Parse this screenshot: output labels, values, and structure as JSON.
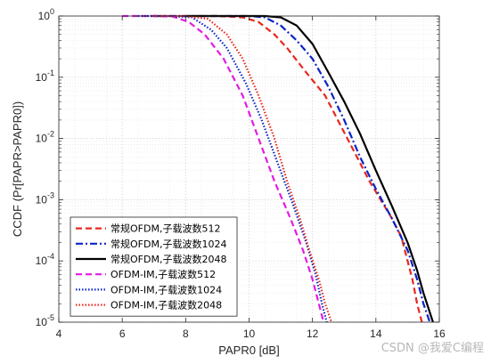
{
  "watermark": "CSDN @我爱C编程",
  "chart_data": {
    "type": "line",
    "title": "",
    "xlabel": "PAPR0 [dB]",
    "ylabel": "CCDF (Pr[PAPR>PAPR0])",
    "xlim": [
      4,
      16
    ],
    "ylim": [
      1e-05,
      1
    ],
    "yscale": "log",
    "xticks": [
      "4",
      "6",
      "8",
      "10",
      "12",
      "14",
      "16"
    ],
    "yticks": [
      {
        "value": 1,
        "base": "10",
        "exp": "0"
      },
      {
        "value": 0.1,
        "base": "10",
        "exp": "-1"
      },
      {
        "value": 0.01,
        "base": "10",
        "exp": "-2"
      },
      {
        "value": 0.001,
        "base": "10",
        "exp": "-3"
      },
      {
        "value": 0.0001,
        "base": "10",
        "exp": "-4"
      },
      {
        "value": 1e-05,
        "base": "10",
        "exp": "-5"
      }
    ],
    "grid": true,
    "legend_position": "bottom-left",
    "series": [
      {
        "name": "常规OFDM,子载波数512",
        "color": "#e8281e",
        "dash": "dashed",
        "x": [
          6.9,
          8,
          9,
          9.8,
          10.3,
          10.8,
          11.2,
          11.8,
          12.4,
          13.1,
          13.8,
          14.5,
          14.8,
          15.0,
          15.15,
          15.3,
          15.45
        ],
        "y": [
          1,
          1,
          1,
          0.95,
          0.8,
          0.5,
          0.3,
          0.12,
          0.05,
          0.01,
          0.002,
          0.0005,
          0.00025,
          0.0001,
          5e-05,
          2e-05,
          1e-05
        ]
      },
      {
        "name": "常规OFDM,子载波数1024",
        "color": "#0b24c7",
        "dash": "dashdot",
        "x": [
          7.0,
          8,
          9,
          10,
          10.5,
          11,
          11.5,
          12,
          12.5,
          13,
          13.5,
          14,
          14.5,
          15,
          15.3,
          15.5,
          15.7
        ],
        "y": [
          1,
          1,
          1,
          1,
          0.95,
          0.7,
          0.4,
          0.2,
          0.07,
          0.02,
          0.005,
          0.0015,
          0.0005,
          0.00015,
          5e-05,
          2e-05,
          1e-05
        ]
      },
      {
        "name": "常规OFDM,子载波数2048",
        "color": "#000000",
        "dash": "solid",
        "x": [
          8.0,
          9,
          10,
          10.5,
          11,
          11.5,
          12,
          12.5,
          13,
          13.5,
          14,
          14.5,
          15,
          15.3,
          15.5,
          15.8
        ],
        "y": [
          1,
          1,
          1,
          1,
          0.95,
          0.7,
          0.35,
          0.12,
          0.04,
          0.012,
          0.003,
          0.0008,
          0.0002,
          7e-05,
          3e-05,
          1e-05
        ]
      },
      {
        "name": "OFDM-IM,子载波数512",
        "color": "#e31ce3",
        "dash": "dashed",
        "x": [
          6.0,
          7,
          7.6,
          8.1,
          8.6,
          9.2,
          9.8,
          10.3,
          10.8,
          11.3,
          11.7,
          12.0,
          12.2,
          12.35
        ],
        "y": [
          1,
          1,
          0.98,
          0.8,
          0.5,
          0.2,
          0.05,
          0.01,
          0.002,
          0.0005,
          0.00015,
          5e-05,
          2e-05,
          1e-05
        ]
      },
      {
        "name": "OFDM-IM,子载波数1024",
        "color": "#0b24c7",
        "dash": "dotted",
        "x": [
          6.5,
          7.5,
          8.2,
          8.8,
          9.3,
          9.9,
          10.4,
          10.9,
          11.4,
          11.8,
          12.1,
          12.3,
          12.45
        ],
        "y": [
          1,
          1,
          0.95,
          0.6,
          0.3,
          0.08,
          0.02,
          0.004,
          0.0008,
          0.0002,
          6e-05,
          2e-05,
          1e-05
        ]
      },
      {
        "name": "OFDM-IM,子载波数2048",
        "color": "#e8281e",
        "dash": "dotted",
        "x": [
          7.0,
          8,
          8.7,
          9.3,
          9.8,
          10.3,
          10.8,
          11.2,
          11.6,
          11.9,
          12.2,
          12.4,
          12.6
        ],
        "y": [
          1,
          1,
          0.9,
          0.5,
          0.2,
          0.05,
          0.01,
          0.002,
          0.0005,
          0.00015,
          5e-05,
          2e-05,
          1e-05
        ]
      }
    ]
  }
}
